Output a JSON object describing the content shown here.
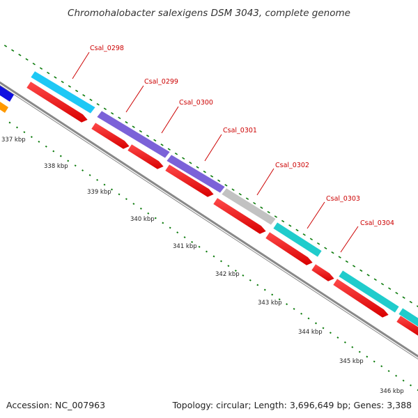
{
  "header": {
    "title": "Chromohalobacter salexigens DSM 3043, complete genome"
  },
  "footer": {
    "accession": "Accession: NC_007963",
    "summary": "Topology: circular; Length: 3,696,649 bp; Genes: 3,388"
  },
  "ruler": {
    "ticks": [
      "337 kbp",
      "338 kbp",
      "339 kbp",
      "340 kbp",
      "341 kbp",
      "342 kbp",
      "343 kbp",
      "344 kbp",
      "345 kbp",
      "346 kbp"
    ]
  },
  "genes": [
    {
      "label": "Csal_0298",
      "color": "#1ec8f5"
    },
    {
      "label": "Csal_0299",
      "color": "#7b62d8"
    },
    {
      "label": "Csal_0300",
      "color": "#7b62d8"
    },
    {
      "label": "Csal_0301",
      "color": "#7b62d8"
    },
    {
      "label": "Csal_0302",
      "color": "#c2c2c2"
    },
    {
      "label": "Csal_0303",
      "color": "#20cccc"
    },
    {
      "label": "Csal_0304",
      "color": "#20cccc"
    }
  ],
  "colors": {
    "cds": "#ff0000",
    "backbone": "#888888",
    "tick": "#0a7a0a",
    "label": "#cc0000",
    "prev_gene_blue": "#1010e0",
    "prev_gene_orange": "#ff9900"
  }
}
